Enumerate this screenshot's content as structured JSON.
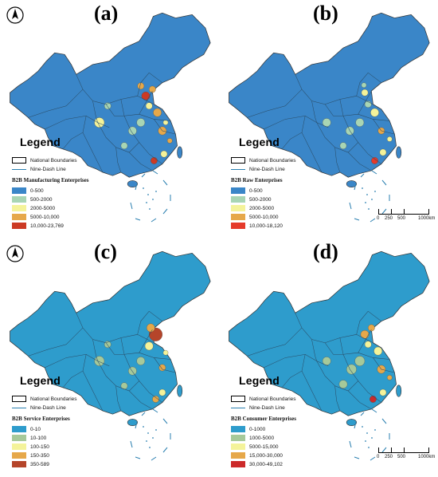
{
  "panels": [
    {
      "label": "(a)",
      "north_arrow": true,
      "scale_bar": false,
      "legend": {
        "title": "Legend",
        "boundary_label": "National Boundaries",
        "ninedash_label": "Nine-Dash Line",
        "class_title": "B2B Manufacturing Enterprises",
        "classes": [
          {
            "label": "0-500",
            "color": "#3a86c8"
          },
          {
            "label": "500-2000",
            "color": "#a8d5b4"
          },
          {
            "label": "2000-5000",
            "color": "#f4f39a"
          },
          {
            "label": "5000-10,000",
            "color": "#e6a84a"
          },
          {
            "label": "10,000-23,769",
            "color": "#cc3a24"
          }
        ]
      }
    },
    {
      "label": "(b)",
      "north_arrow": false,
      "scale_bar": true,
      "legend": {
        "title": "Legend",
        "boundary_label": "National Boundaries",
        "ninedash_label": "Nine-Dash Line",
        "class_title": "B2B Raw Enterprises",
        "classes": [
          {
            "label": "0-500",
            "color": "#3a86c8"
          },
          {
            "label": "500-2000",
            "color": "#a8d5b4"
          },
          {
            "label": "2000-5000",
            "color": "#f4f39a"
          },
          {
            "label": "5000-10,000",
            "color": "#e6a84a"
          },
          {
            "label": "10,000-18,120",
            "color": "#e53a2a"
          }
        ]
      }
    },
    {
      "label": "(c)",
      "north_arrow": true,
      "scale_bar": false,
      "legend": {
        "title": "Legend",
        "boundary_label": "National Boundaries",
        "ninedash_label": "Nine-Dash Line",
        "class_title": "B2B Service Enterprises",
        "classes": [
          {
            "label": "0-10",
            "color": "#2e9ccc"
          },
          {
            "label": "10-100",
            "color": "#a6c99a"
          },
          {
            "label": "100-150",
            "color": "#f4f39a"
          },
          {
            "label": "150-350",
            "color": "#e6a84a"
          },
          {
            "label": "350-589",
            "color": "#b5452a"
          }
        ]
      }
    },
    {
      "label": "(d)",
      "north_arrow": false,
      "scale_bar": true,
      "legend": {
        "title": "Legend",
        "boundary_label": "National Boundaries",
        "ninedash_label": "Nine-Dash Line",
        "class_title": "B2B Consumer Enterprises",
        "classes": [
          {
            "label": "0-1000",
            "color": "#2e9ccc"
          },
          {
            "label": "1000-5000",
            "color": "#a6c99a"
          },
          {
            "label": "5000-15,000",
            "color": "#f4f39a"
          },
          {
            "label": "15,000-30,000",
            "color": "#e6a84a"
          },
          {
            "label": "30,000-49,102",
            "color": "#cc2a2a"
          }
        ]
      }
    }
  ],
  "scale_bar": {
    "ticks": [
      "0",
      "250",
      "500",
      "1000km"
    ]
  },
  "north_symbol": "north-arrow-icon",
  "map_colors": {
    "base": "#2f86b8",
    "border": "#333333",
    "water_islands": "#3aa0c0"
  }
}
